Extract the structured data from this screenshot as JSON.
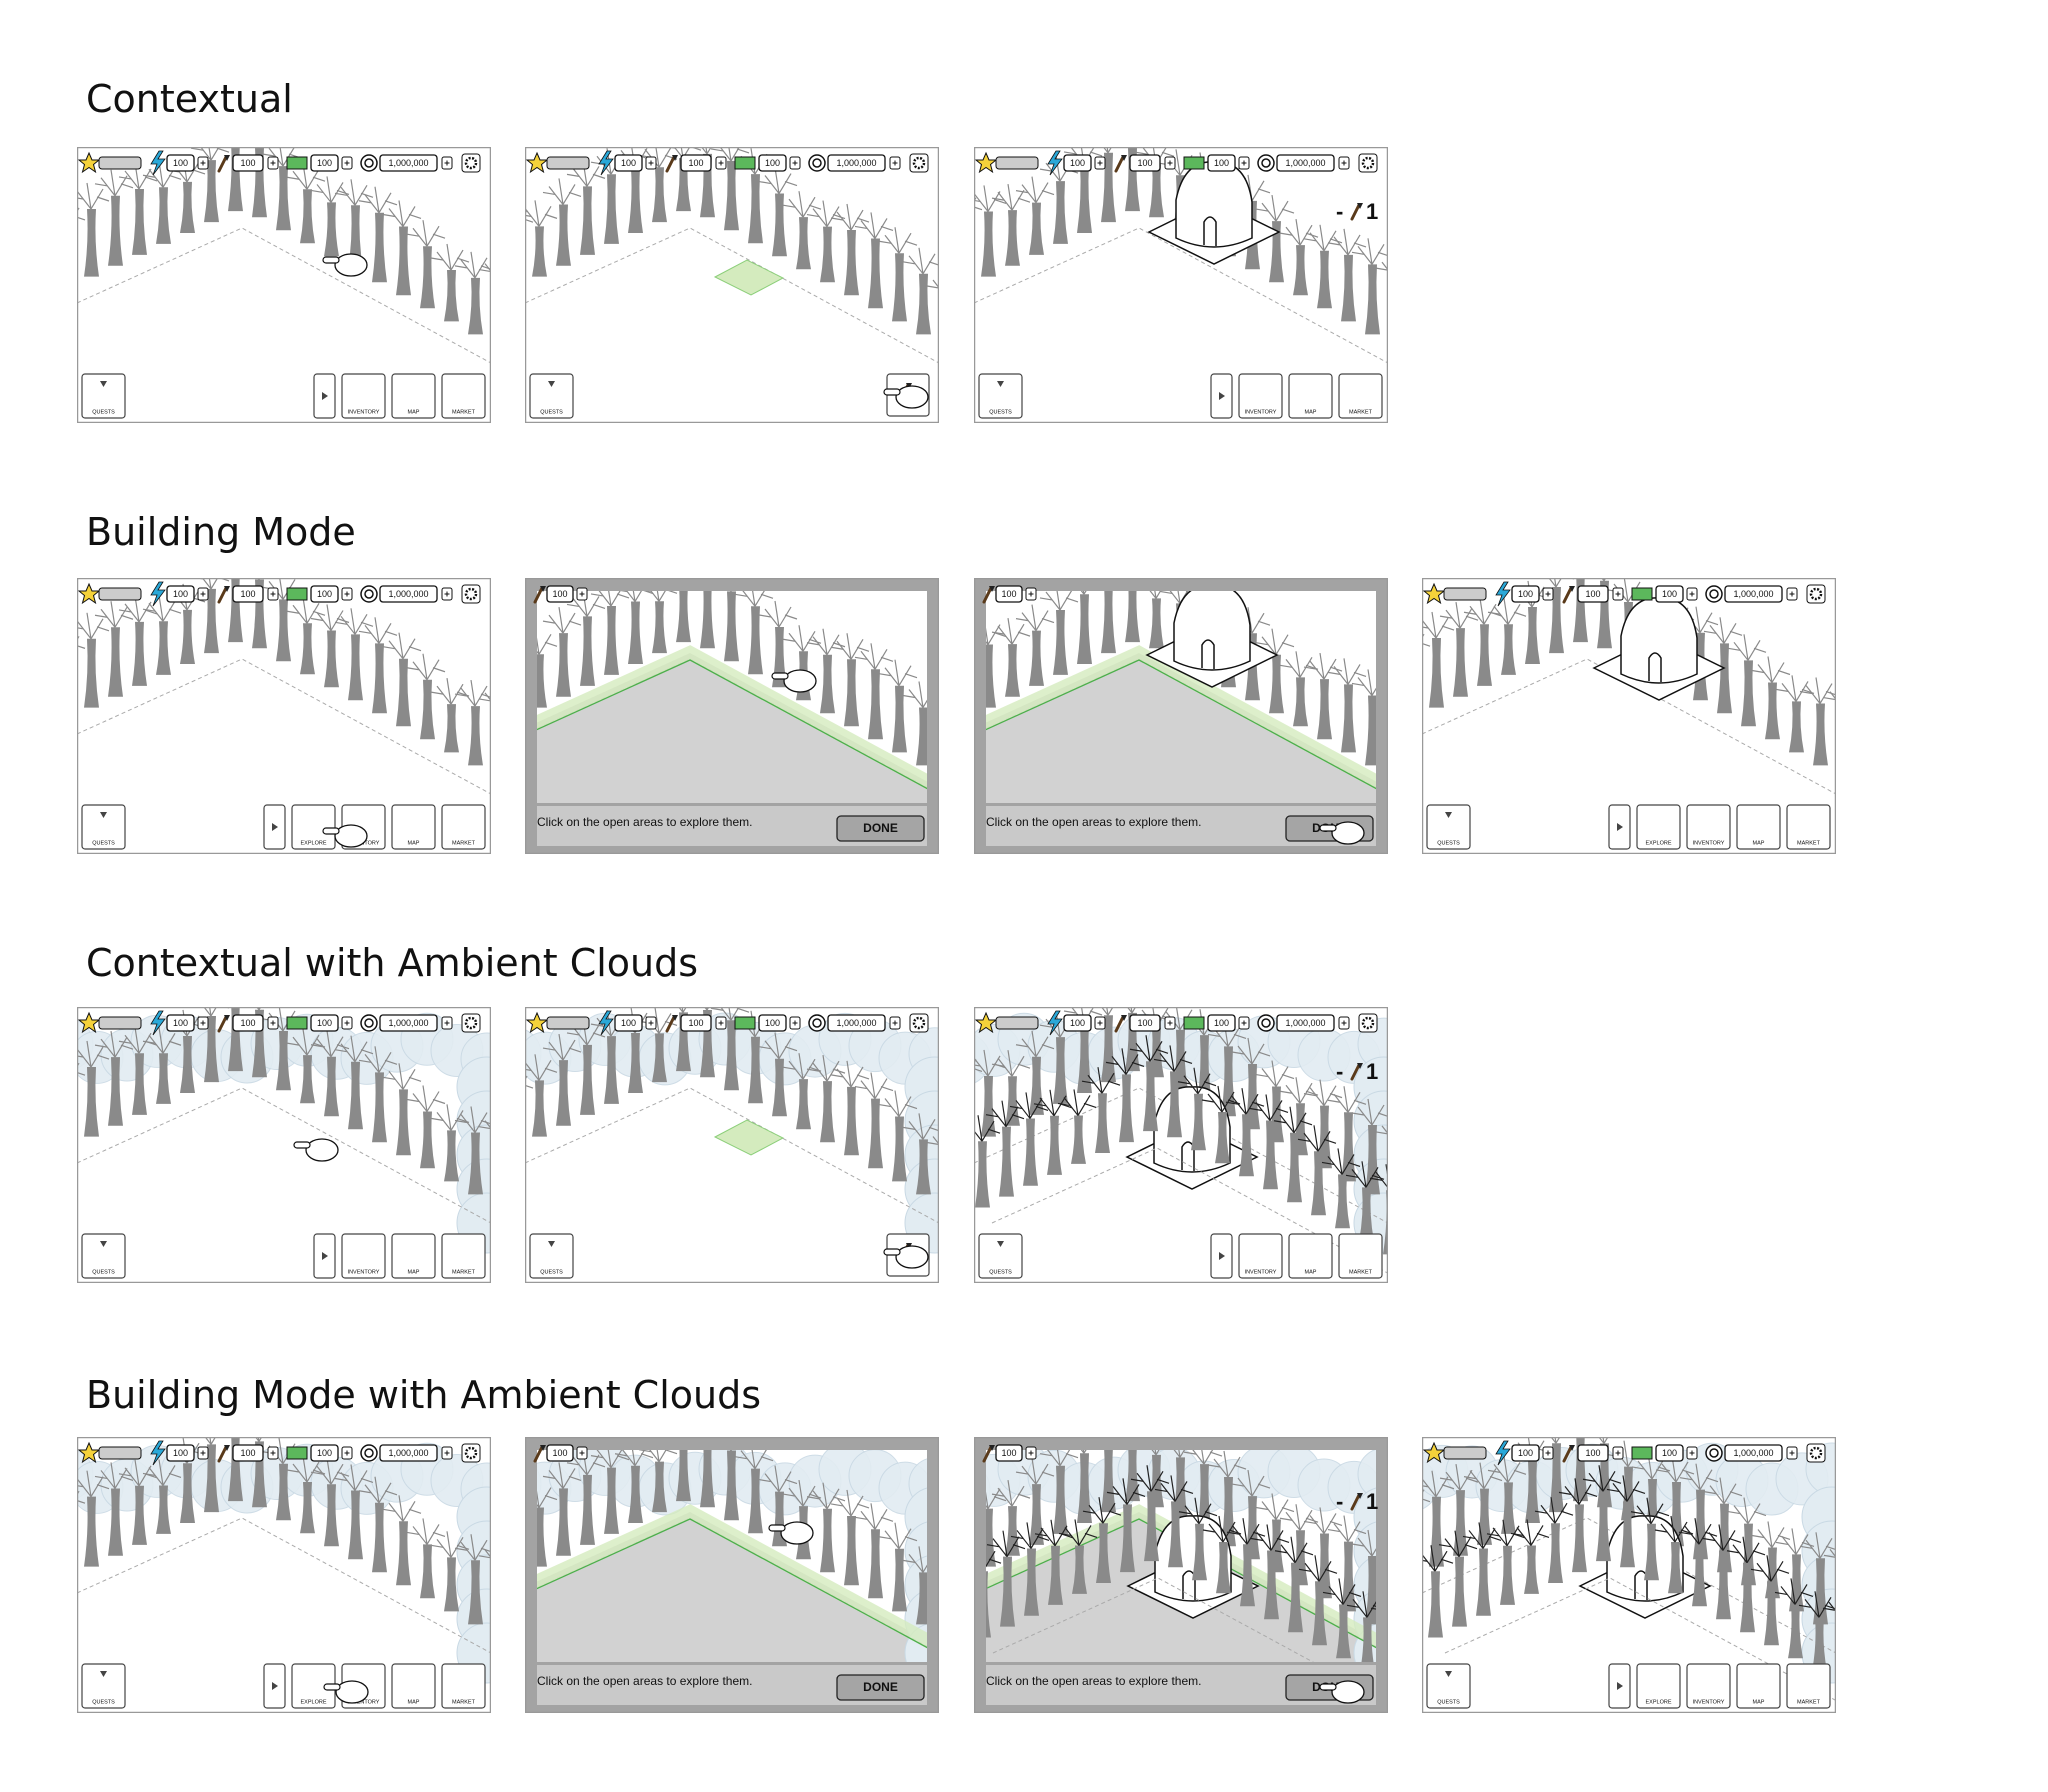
{
  "sections": [
    {
      "title": "Contextual",
      "frames": [
        {
          "hud": {
            "energy": "100",
            "materials": "100",
            "cash": "100",
            "coins": "1,000,000"
          },
          "left_buttons": [
            "QUESTS"
          ],
          "right_buttons": [
            "INVENTORY",
            "MAP",
            "MARKET"
          ]
        },
        {
          "hud": {
            "energy": "100",
            "materials": "100",
            "cash": "100",
            "coins": "1,000,000"
          },
          "left_buttons": [
            "QUESTS"
          ],
          "right_buttons": []
        },
        {
          "hud": {
            "energy": "100",
            "materials": "100",
            "cash": "100",
            "coins": "1,000,000"
          },
          "cost": {
            "sign": "-",
            "amount": "1"
          },
          "left_buttons": [
            "QUESTS"
          ],
          "right_buttons": [
            "INVENTORY",
            "MAP",
            "MARKET"
          ]
        }
      ]
    },
    {
      "title": "Building Mode",
      "frames": [
        {
          "hud": {
            "energy": "100",
            "materials": "100",
            "cash": "100",
            "coins": "1,000,000"
          },
          "left_buttons": [
            "QUESTS"
          ],
          "right_buttons": [
            "EXPLORE",
            "INVENTORY",
            "MAP",
            "MARKET"
          ]
        },
        {
          "hud": {
            "materials": "100"
          },
          "message": "Click on the open areas to explore them.",
          "done": "DONE"
        },
        {
          "hud": {
            "materials": "100"
          },
          "message": "Click on the open areas to explore them.",
          "done": "DONE"
        },
        {
          "hud": {
            "energy": "100",
            "materials": "100",
            "cash": "100",
            "coins": "1,000,000"
          },
          "left_buttons": [
            "QUESTS"
          ],
          "right_buttons": [
            "EXPLORE",
            "INVENTORY",
            "MAP",
            "MARKET"
          ]
        }
      ]
    },
    {
      "title": "Contextual with Ambient Clouds",
      "frames": [
        {
          "hud": {
            "energy": "100",
            "materials": "100",
            "cash": "100",
            "coins": "1,000,000"
          },
          "left_buttons": [
            "QUESTS"
          ],
          "right_buttons": [
            "INVENTORY",
            "MAP",
            "MARKET"
          ]
        },
        {
          "hud": {
            "energy": "100",
            "materials": "100",
            "cash": "100",
            "coins": "1,000,000"
          },
          "left_buttons": [
            "QUESTS"
          ],
          "right_buttons": []
        },
        {
          "hud": {
            "energy": "100",
            "materials": "100",
            "cash": "100",
            "coins": "1,000,000"
          },
          "cost": {
            "sign": "-",
            "amount": "1"
          },
          "left_buttons": [
            "QUESTS"
          ],
          "right_buttons": [
            "INVENTORY",
            "MAP",
            "MARKET"
          ]
        }
      ]
    },
    {
      "title": "Building Mode with Ambient Clouds",
      "frames": [
        {
          "hud": {
            "energy": "100",
            "materials": "100",
            "cash": "100",
            "coins": "1,000,000"
          },
          "left_buttons": [
            "QUESTS"
          ],
          "right_buttons": [
            "EXPLORE",
            "INVENTORY",
            "MAP",
            "MARKET"
          ]
        },
        {
          "hud": {
            "materials": "100"
          },
          "message": "Click on the open areas to explore them.",
          "done": "DONE"
        },
        {
          "hud": {
            "materials": "100"
          },
          "cost": {
            "sign": "-",
            "amount": "1"
          },
          "message": "Click on the open areas to explore them.",
          "done": "DONE"
        },
        {
          "hud": {
            "energy": "100",
            "materials": "100",
            "cash": "100",
            "coins": "1,000,000"
          },
          "left_buttons": [
            "QUESTS"
          ],
          "right_buttons": [
            "EXPLORE",
            "INVENTORY",
            "MAP",
            "MARKET"
          ]
        }
      ]
    }
  ]
}
